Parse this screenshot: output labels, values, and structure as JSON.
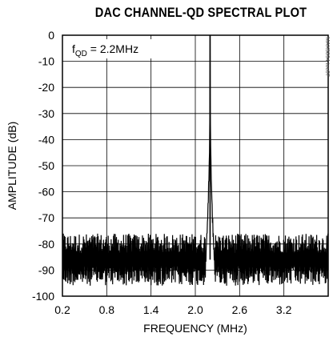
{
  "chart_data": {
    "type": "line",
    "title": "DAC CHANNEL-QD SPECTRAL PLOT",
    "xlabel": "FREQUENCY (MHz)",
    "ylabel": "AMPLITUDE (dB)",
    "xlim": [
      0.2,
      3.8
    ],
    "ylim": [
      -100,
      0
    ],
    "x_ticks": [
      "0.2",
      "0.8",
      "1.4",
      "2.0",
      "2.6",
      "3.2"
    ],
    "y_ticks": [
      "0",
      "-10",
      "-20",
      "-30",
      "-40",
      "-50",
      "-60",
      "-70",
      "-80",
      "-90",
      "-100"
    ],
    "grid": true,
    "annotation": {
      "base": "f",
      "subscript": "QD",
      "text": " = 2.2MHz"
    },
    "watermark": "MAX5894 toc07",
    "series": [
      {
        "color": "#000000",
        "points": [
          [
            0.2,
            -86
          ],
          [
            2.15,
            -86
          ],
          [
            2.18,
            -80
          ],
          [
            2.2,
            0
          ],
          [
            2.22,
            -80
          ],
          [
            2.25,
            -86
          ],
          [
            3.8,
            -86
          ]
        ],
        "noise_floor_db": [
          -96,
          -76
        ],
        "peak": {
          "x": 2.2,
          "y": 0
        }
      }
    ]
  }
}
